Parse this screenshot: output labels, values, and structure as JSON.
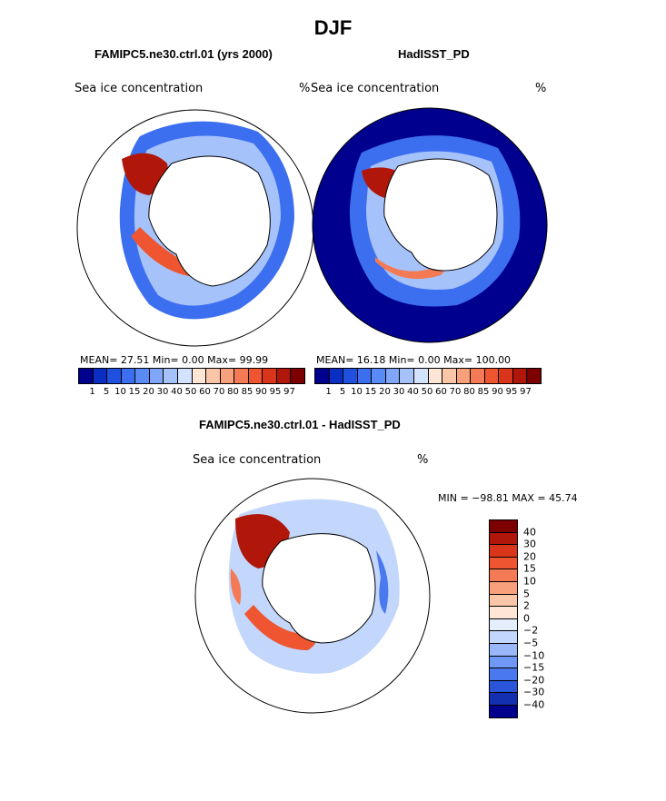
{
  "main_title": "DJF",
  "panels": [
    {
      "title": "FAMIPC5.ne30.ctrl.01 (yrs 2000)",
      "label": "Sea ice concentration",
      "units": "%",
      "stats": "MEAN=  27.51   Min=    0.00   Max=  99.99"
    },
    {
      "title": "HadISST_PD",
      "label": "Sea ice concentration",
      "units": "%",
      "stats": "MEAN=  16.18   Min=    0.00   Max= 100.00"
    },
    {
      "title": "FAMIPC5.ne30.ctrl.01 - HadISST_PD",
      "label": "Sea ice concentration",
      "units": "%",
      "stats": "MIN = −98.81  MAX =   45.74"
    }
  ],
  "chart_data": [
    {
      "type": "heatmap",
      "title": "FAMIPC5.ne30.ctrl.01 (yrs 2000)",
      "variable": "Sea ice concentration",
      "units": "%",
      "projection": "polar stereographic, south pole",
      "mean": 27.51,
      "min": 0.0,
      "max": 99.99
    },
    {
      "type": "heatmap",
      "title": "HadISST_PD",
      "variable": "Sea ice concentration",
      "units": "%",
      "projection": "polar stereographic, south pole",
      "mean": 16.18,
      "min": 0.0,
      "max": 100.0
    },
    {
      "type": "heatmap",
      "title": "FAMIPC5.ne30.ctrl.01 - HadISST_PD",
      "variable": "Sea ice concentration",
      "units": "%",
      "projection": "polar stereographic, south pole",
      "min": -98.81,
      "max": 45.74
    }
  ],
  "colorbar_abs": {
    "labels": [
      "1",
      "5",
      "10",
      "15",
      "20",
      "30",
      "40",
      "50",
      "60",
      "70",
      "80",
      "85",
      "90",
      "95",
      "97"
    ],
    "colors": [
      "#00008f",
      "#0a2dc2",
      "#1f50e0",
      "#3c6ef0",
      "#5a8af5",
      "#7fa6f8",
      "#a6c2fb",
      "#d3e2fd",
      "#fde6d6",
      "#fbc6a8",
      "#f8a07c",
      "#f47a55",
      "#ee5530",
      "#d8351b",
      "#b0170a",
      "#7d0000"
    ]
  },
  "colorbar_diff": {
    "labels": [
      "40",
      "30",
      "20",
      "15",
      "10",
      "5",
      "2",
      "0",
      "−2",
      "−5",
      "−10",
      "−15",
      "−20",
      "−30",
      "−40"
    ],
    "colors": [
      "#7d0000",
      "#b0170a",
      "#d8351b",
      "#ee5530",
      "#f47a55",
      "#f8a07c",
      "#fbc6a8",
      "#fde6d6",
      "#e4eefd",
      "#c3d6fc",
      "#9ab8f9",
      "#6f98f5",
      "#4a78ee",
      "#2a55d8",
      "#1230b0",
      "#00008f"
    ]
  }
}
